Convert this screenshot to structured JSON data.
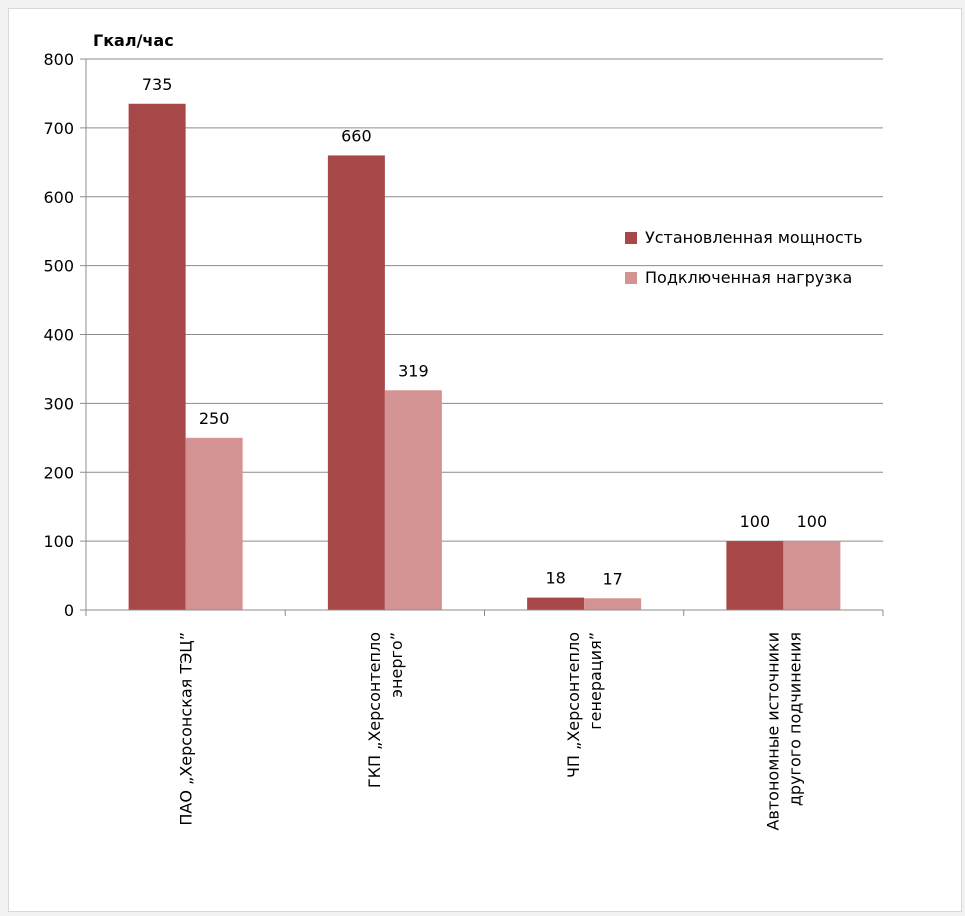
{
  "chart_data": {
    "type": "bar",
    "ylabel": "Гкал/час",
    "ylim": [
      0,
      800
    ],
    "yticks": [
      0,
      100,
      200,
      300,
      400,
      500,
      600,
      700,
      800
    ],
    "grid": true,
    "legend_position": "right",
    "categories": [
      [
        "ПАО „Херсонская      ТЭЦ”"
      ],
      [
        "ГКП „Херсонтепло",
        "энерго”"
      ],
      [
        "ЧП „Херсонтепло",
        "генерация”"
      ],
      [
        "Автономные источники",
        "другого подчинения"
      ]
    ],
    "series": [
      {
        "name": "Установленная мощность",
        "color": "#a84747",
        "values": [
          735,
          660,
          18,
          100
        ]
      },
      {
        "name": "Подключенная нагрузка",
        "color": "#d39393",
        "values": [
          250,
          319,
          17,
          100
        ]
      }
    ]
  }
}
